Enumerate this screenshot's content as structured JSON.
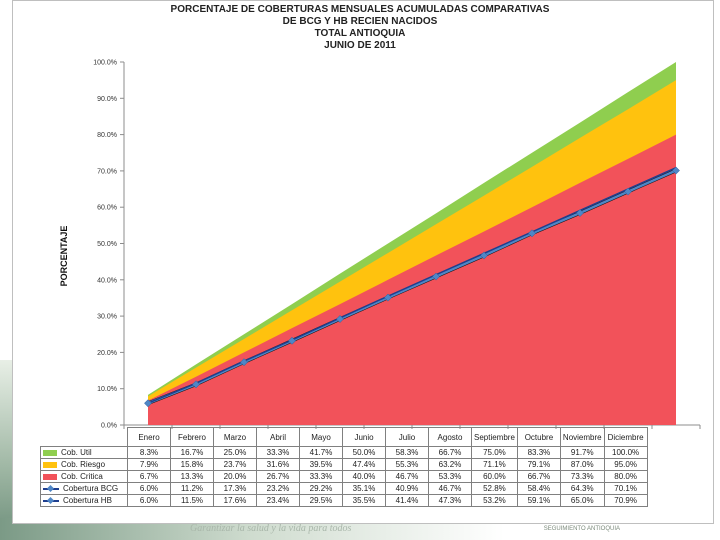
{
  "colors": {
    "cob_util": "#8fce4f",
    "cob_riesgo": "#ffc20e",
    "cob_critica": "#f2525a",
    "line_bcg": "#4f86c6",
    "line_hb": "#1f3f8f"
  },
  "footer": {
    "text": "Garantizar la salud y la vida para todos",
    "right": "SEGUIMIENTO ANTIOQUIA"
  },
  "chart_data": {
    "type": "area",
    "title_lines": [
      "PORCENTAJE DE COBERTURAS MENSUALES ACUMULADAS COMPARATIVAS",
      "DE BCG Y HB RECIEN NACIDOS",
      "TOTAL ANTIOQUIA",
      "JUNIO DE 2011"
    ],
    "ylabel": "PORCENTAJE",
    "ylim": [
      0,
      100
    ],
    "yticks": [
      "0.0%",
      "10.0%",
      "20.0%",
      "30.0%",
      "40.0%",
      "50.0%",
      "60.0%",
      "70.0%",
      "80.0%",
      "90.0%",
      "100.0%"
    ],
    "categories": [
      "Enero",
      "Febrero",
      "Marzo",
      "Abril",
      "Mayo",
      "Junio",
      "Julio",
      "Agosto",
      "Septiembre",
      "Octubre",
      "Noviembre",
      "Diciembre"
    ],
    "series": [
      {
        "name": "Cob. Util",
        "kind": "area",
        "values": [
          8.3,
          16.7,
          25.0,
          33.3,
          41.7,
          50.0,
          58.3,
          66.7,
          75.0,
          83.3,
          91.7,
          100.0
        ],
        "labels": [
          "8.3%",
          "16.7%",
          "25.0%",
          "33.3%",
          "41.7%",
          "50.0%",
          "58.3%",
          "66.7%",
          "75.0%",
          "83.3%",
          "91.7%",
          "100.0%"
        ]
      },
      {
        "name": "Cob. Riesgo",
        "kind": "area",
        "values": [
          7.9,
          15.8,
          23.7,
          31.6,
          39.5,
          47.4,
          55.3,
          63.2,
          71.1,
          79.1,
          87.0,
          95.0
        ],
        "labels": [
          "7.9%",
          "15.8%",
          "23.7%",
          "31.6%",
          "39.5%",
          "47.4%",
          "55.3%",
          "63.2%",
          "71.1%",
          "79.1%",
          "87.0%",
          "95.0%"
        ]
      },
      {
        "name": "Cob. Critica",
        "kind": "area",
        "values": [
          6.7,
          13.3,
          20.0,
          26.7,
          33.3,
          40.0,
          46.7,
          53.3,
          60.0,
          66.7,
          73.3,
          80.0
        ],
        "labels": [
          "6.7%",
          "13.3%",
          "20.0%",
          "26.7%",
          "33.3%",
          "40.0%",
          "46.7%",
          "53.3%",
          "60.0%",
          "66.7%",
          "73.3%",
          "80.0%"
        ]
      },
      {
        "name": "Cobertura BCG",
        "kind": "line",
        "values": [
          6.0,
          11.2,
          17.3,
          23.2,
          29.2,
          35.1,
          40.9,
          46.7,
          52.8,
          58.4,
          64.3,
          70.1
        ],
        "labels": [
          "6.0%",
          "11.2%",
          "17.3%",
          "23.2%",
          "29.2%",
          "35.1%",
          "40.9%",
          "46.7%",
          "52.8%",
          "58.4%",
          "64.3%",
          "70.1%"
        ]
      },
      {
        "name": "Cobertura HB",
        "kind": "line",
        "values": [
          6.0,
          11.5,
          17.6,
          23.4,
          29.5,
          35.5,
          41.4,
          47.3,
          53.2,
          59.1,
          65.0,
          70.9
        ],
        "labels": [
          "6.0%",
          "11.5%",
          "17.6%",
          "23.4%",
          "29.5%",
          "35.5%",
          "41.4%",
          "47.3%",
          "53.2%",
          "59.1%",
          "65.0%",
          "70.9%"
        ]
      }
    ]
  }
}
